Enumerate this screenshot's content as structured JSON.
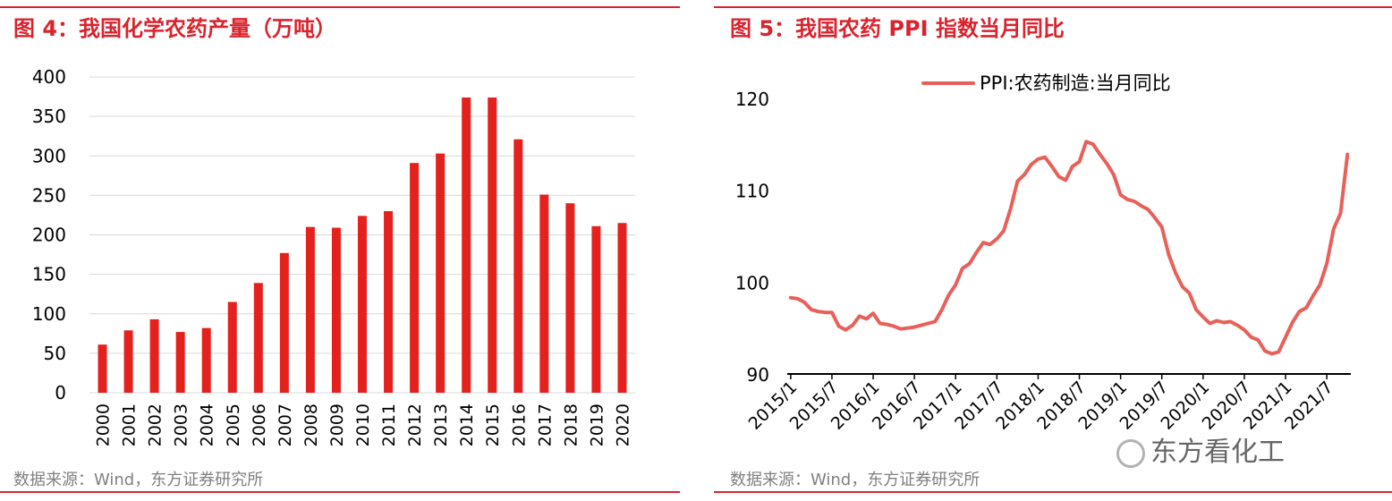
{
  "chart_data": [
    {
      "type": "bar",
      "title": "图 4：我国化学农药产量（万吨）",
      "source": "数据来源：Wind，东方证券研究所",
      "categories": [
        "2000",
        "2001",
        "2002",
        "2003",
        "2004",
        "2005",
        "2006",
        "2007",
        "2008",
        "2009",
        "2010",
        "2011",
        "2012",
        "2013",
        "2014",
        "2015",
        "2016",
        "2017",
        "2018",
        "2019",
        "2020"
      ],
      "values": [
        61,
        79,
        93,
        77,
        82,
        115,
        139,
        177,
        210,
        209,
        224,
        230,
        291,
        303,
        374,
        374,
        321,
        251,
        240,
        211,
        215
      ],
      "ylim": [
        0,
        400
      ],
      "yticks": [
        "0",
        "50",
        "100",
        "150",
        "200",
        "250",
        "300",
        "350",
        "400"
      ],
      "grid": true,
      "color": "#e4211d"
    },
    {
      "type": "line",
      "title": "图 5：我国农药 PPI 指数当月同比",
      "source": "数据来源：Wind，东方证券研究所",
      "legend_position": "top",
      "series": [
        {
          "name": "PPI:农药制造:当月同比",
          "color": "#e8605a",
          "values": [
            98.3,
            98.2,
            97.8,
            97.0,
            96.8,
            96.7,
            96.7,
            95.2,
            94.8,
            95.3,
            96.3,
            96.0,
            96.6,
            95.5,
            95.4,
            95.2,
            94.9,
            95.0,
            95.1,
            95.3,
            95.5,
            95.7,
            97.0,
            98.6,
            99.7,
            101.5,
            102.0,
            103.2,
            104.3,
            104.1,
            104.7,
            105.6,
            108.0,
            111.0,
            111.7,
            112.8,
            113.4,
            113.6,
            112.6,
            111.5,
            111.1,
            112.6,
            113.1,
            115.3,
            115.0,
            113.9,
            112.9,
            111.7,
            109.5,
            109.0,
            108.8,
            108.3,
            107.9,
            107.0,
            106.0,
            103.0,
            101.0,
            99.5,
            98.8,
            97.0,
            96.2,
            95.5,
            95.8,
            95.6,
            95.7,
            95.3,
            94.8,
            94.0,
            93.7,
            92.5,
            92.2,
            92.4,
            94.0,
            95.6,
            96.8,
            97.2,
            98.5,
            99.7,
            102.0,
            105.8,
            107.5,
            113.9
          ]
        }
      ],
      "x_tick_labels": [
        "2015/1",
        "2015/7",
        "2016/1",
        "2016/7",
        "2017/1",
        "2017/7",
        "2018/1",
        "2018/7",
        "2019/1",
        "2019/7",
        "2020/1",
        "2020/7",
        "2021/1",
        "2021/7"
      ],
      "ylim": [
        90,
        120
      ],
      "yticks": [
        "90",
        "100",
        "110",
        "120"
      ],
      "grid": false
    }
  ],
  "watermark": "东方看化工"
}
